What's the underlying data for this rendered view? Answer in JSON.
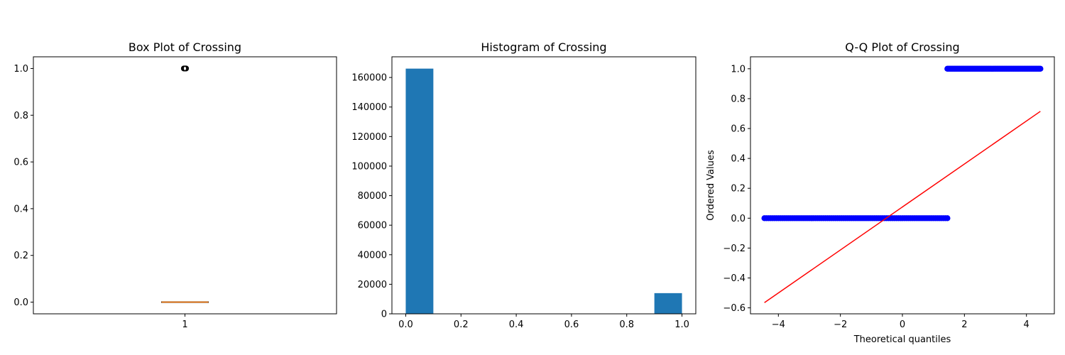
{
  "chart_data": [
    {
      "type": "box",
      "title": "Box Plot of Crossing",
      "xlabel": "",
      "ylabel": "",
      "categories": [
        "1"
      ],
      "ylim": [
        -0.05,
        1.05
      ],
      "yticks": [
        0.0,
        0.2,
        0.4,
        0.6,
        0.8,
        1.0
      ],
      "ytick_labels": [
        "0.0",
        "0.2",
        "0.4",
        "0.6",
        "0.8",
        "1.0"
      ],
      "box": {
        "q1": 0.0,
        "median": 0.0,
        "q3": 0.0,
        "whisker_low": 0.0,
        "whisker_high": 0.0,
        "outliers": [
          1.0
        ]
      },
      "colors": {
        "median": "#ff7f0e",
        "box": "#000000"
      }
    },
    {
      "type": "bar",
      "title": "Histogram of Crossing",
      "xlabel": "",
      "ylabel": "",
      "bins": [
        {
          "x0": 0.0,
          "x1": 0.1,
          "count": 166000
        },
        {
          "x0": 0.9,
          "x1": 1.0,
          "count": 14000
        }
      ],
      "xlim": [
        -0.05,
        1.05
      ],
      "ylim": [
        0,
        174000
      ],
      "xticks": [
        0.0,
        0.2,
        0.4,
        0.6,
        0.8,
        1.0
      ],
      "xtick_labels": [
        "0.0",
        "0.2",
        "0.4",
        "0.6",
        "0.8",
        "1.0"
      ],
      "yticks": [
        0,
        20000,
        40000,
        60000,
        80000,
        100000,
        120000,
        140000,
        160000
      ],
      "ytick_labels": [
        "0",
        "20000",
        "40000",
        "60000",
        "80000",
        "100000",
        "120000",
        "140000",
        "160000"
      ],
      "colors": {
        "bar": "#1f77b4"
      }
    },
    {
      "type": "scatter",
      "title": "Q-Q Plot of Crossing",
      "xlabel": "Theoretical quantiles",
      "ylabel": "Ordered Values",
      "xlim": [
        -4.9,
        4.9
      ],
      "ylim": [
        -0.64,
        1.08
      ],
      "xticks": [
        -4,
        -2,
        0,
        2,
        4
      ],
      "xtick_labels": [
        "−4",
        "−2",
        "0",
        "2",
        "4"
      ],
      "yticks": [
        -0.6,
        -0.4,
        -0.2,
        0.0,
        0.2,
        0.4,
        0.6,
        0.8,
        1.0
      ],
      "ytick_labels": [
        "−0.6",
        "−0.4",
        "−0.2",
        "0.0",
        "0.2",
        "0.4",
        "0.6",
        "0.8",
        "1.0"
      ],
      "points_segments": [
        {
          "x_from": -4.45,
          "x_to": 1.45,
          "y": 0.0
        },
        {
          "x_from": 1.45,
          "x_to": 4.45,
          "y": 1.0
        }
      ],
      "fit_line": {
        "x": [
          -4.45,
          4.45
        ],
        "y": [
          -0.565,
          0.715
        ]
      },
      "colors": {
        "points": "#0000ff",
        "fit_line": "#ff0000"
      }
    }
  ]
}
